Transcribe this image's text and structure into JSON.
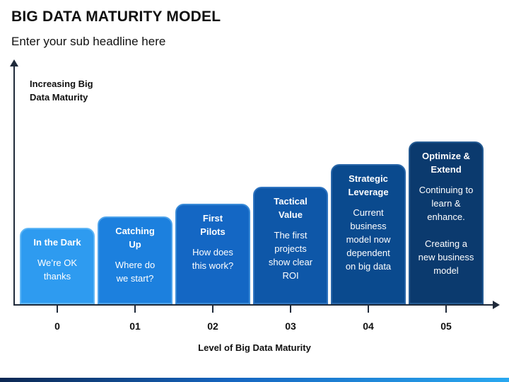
{
  "title": "BIG DATA MATURITY MODEL",
  "subtitle": "Enter your sub headline here",
  "y_axis_label": "Increasing Big\nData Maturity",
  "x_axis_label": "Level of Big Data Maturity",
  "colors": {
    "axis": "#1f2a3a",
    "step_fills": [
      "#2e9bf0",
      "#1c80de",
      "#1467c4",
      "#0e57a8",
      "#0a4a8e",
      "#0b3a6e"
    ],
    "step_borders": [
      "#5fb6f5",
      "#4ea3ea",
      "#3a8bd7",
      "#2f74c0",
      "#2966a8",
      "#245a92"
    ]
  },
  "steps": [
    {
      "level": "0",
      "title": "In the Dark",
      "desc": "We’re OK\nthanks"
    },
    {
      "level": "01",
      "title": "Catching\nUp",
      "desc": "Where do\nwe start?"
    },
    {
      "level": "02",
      "title": "First\nPilots",
      "desc": "How does\nthis work?"
    },
    {
      "level": "03",
      "title": "Tactical\nValue",
      "desc": "The first\nprojects\nshow clear\nROI"
    },
    {
      "level": "04",
      "title": "Strategic\nLeverage",
      "desc": "Current\nbusiness\nmodel now\ndependent\non big data"
    },
    {
      "level": "05",
      "title": "Optimize &\nExtend",
      "desc": "Continuing to\nlearn &\nenhance.\n\nCreating a\nnew business\nmodel"
    }
  ]
}
